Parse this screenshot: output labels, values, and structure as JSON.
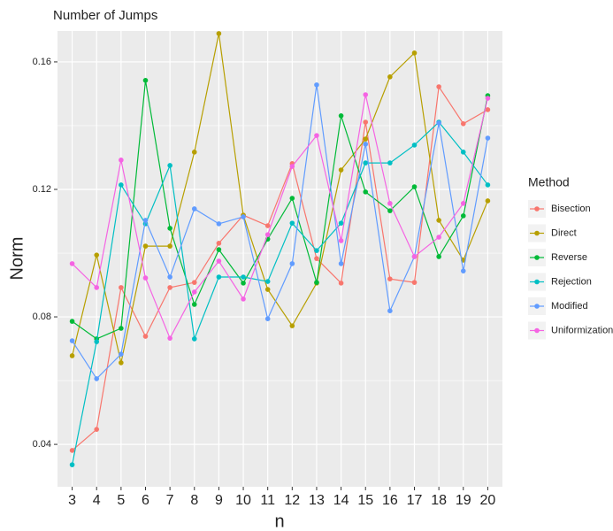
{
  "chart_data": {
    "type": "line",
    "title": "Number of Jumps",
    "x_label": "n",
    "y_label": "Norm",
    "legend_title": "Method",
    "legend": "right",
    "grid": true,
    "x": [
      3,
      4,
      5,
      6,
      7,
      8,
      9,
      10,
      11,
      12,
      13,
      14,
      15,
      16,
      17,
      18,
      19,
      20
    ],
    "xlim": [
      2.4,
      20.6
    ],
    "xticks": [
      3,
      4,
      5,
      6,
      7,
      8,
      9,
      10,
      11,
      12,
      13,
      14,
      15,
      16,
      17,
      18,
      19,
      20
    ],
    "ylim": [
      0.0267,
      0.1697
    ],
    "yticks": [
      0.04,
      0.08,
      0.12,
      0.16
    ],
    "series": [
      {
        "name": "Bisection",
        "color": "#F8766D",
        "values": [
          0.0381,
          0.0447,
          0.0892,
          0.0739,
          0.0892,
          0.0908,
          0.1031,
          0.1119,
          0.1086,
          0.1281,
          0.0983,
          0.0906,
          0.1411,
          0.0919,
          0.0908,
          0.1522,
          0.1406,
          0.145
        ]
      },
      {
        "name": "Direct",
        "color": "#B79F00",
        "values": [
          0.0678,
          0.0994,
          0.0656,
          0.1022,
          0.1022,
          0.1317,
          0.1689,
          0.1119,
          0.0886,
          0.0772,
          0.0906,
          0.1261,
          0.1358,
          0.1553,
          0.1628,
          0.1103,
          0.0978,
          0.1164
        ]
      },
      {
        "name": "Reverse",
        "color": "#00BA38",
        "values": [
          0.0786,
          0.0731,
          0.0764,
          0.1542,
          0.1078,
          0.0839,
          0.1011,
          0.0906,
          0.1044,
          0.1172,
          0.0908,
          0.1431,
          0.1192,
          0.1133,
          0.1208,
          0.0989,
          0.1117,
          0.1494
        ]
      },
      {
        "name": "Rejection",
        "color": "#00BFC4",
        "values": [
          0.0336,
          0.0722,
          0.1214,
          0.1092,
          0.1275,
          0.0731,
          0.0925,
          0.0925,
          0.0911,
          0.1094,
          0.1008,
          0.1094,
          0.1283,
          0.1283,
          0.1339,
          0.1411,
          0.1317,
          0.1214
        ]
      },
      {
        "name": "Modified",
        "color": "#619CFF",
        "values": [
          0.0725,
          0.0606,
          0.0683,
          0.1103,
          0.0925,
          0.1139,
          0.1092,
          0.1114,
          0.0794,
          0.0967,
          0.1528,
          0.0967,
          0.1342,
          0.0819,
          0.0989,
          0.1408,
          0.0944,
          0.1361
        ]
      },
      {
        "name": "Uniformization",
        "color": "#F564E3",
        "values": [
          0.0967,
          0.0892,
          0.1292,
          0.0922,
          0.0733,
          0.0878,
          0.0975,
          0.0856,
          0.1058,
          0.1272,
          0.1369,
          0.1039,
          0.1497,
          0.1156,
          0.0989,
          0.105,
          0.1156,
          0.1486
        ]
      }
    ]
  }
}
